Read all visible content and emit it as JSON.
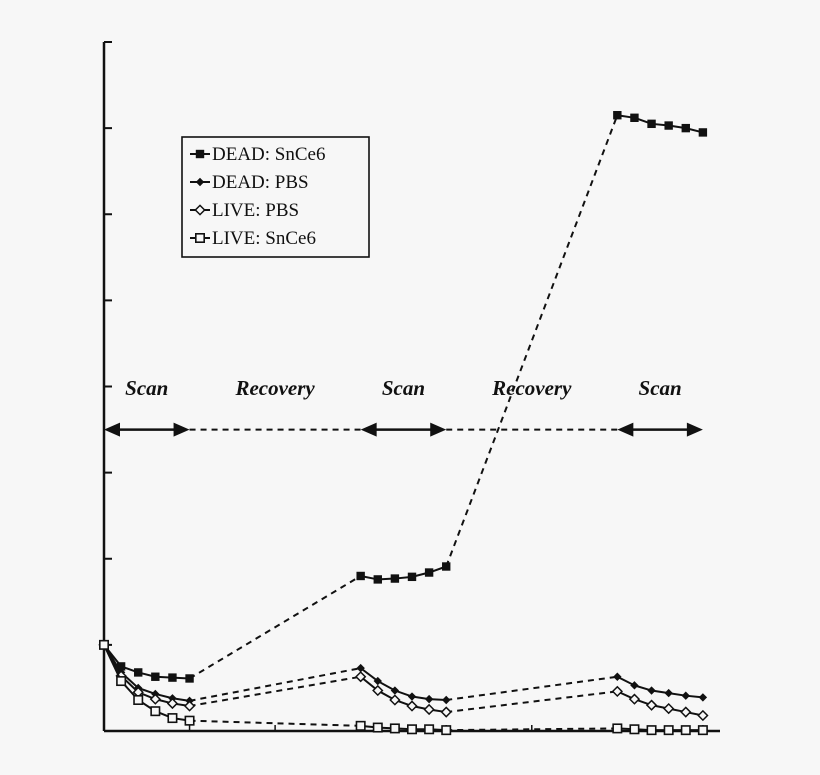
{
  "chart_data": {
    "type": "line",
    "title": "",
    "xlabel": "",
    "ylabel": "",
    "x": [
      0,
      1,
      2,
      3,
      4,
      5,
      15,
      16,
      17,
      18,
      19,
      20,
      30,
      31,
      32,
      33,
      34,
      35
    ],
    "xlim": [
      0,
      36
    ],
    "ylim": [
      0,
      8
    ],
    "y_ticks": [
      0,
      1,
      2,
      3,
      4,
      5,
      6,
      7,
      8
    ],
    "x_ticks": [
      0,
      5,
      10,
      15,
      20,
      25,
      30,
      35
    ],
    "grid": false,
    "legend_position": "top-left",
    "series": [
      {
        "name": "DEAD: SnCe6",
        "marker": "filled-square",
        "values": [
          1.0,
          0.75,
          0.68,
          0.63,
          0.62,
          0.61,
          1.8,
          1.76,
          1.77,
          1.79,
          1.84,
          1.91,
          7.15,
          7.12,
          7.05,
          7.03,
          7.0,
          6.95
        ]
      },
      {
        "name": "DEAD: PBS",
        "marker": "filled-diamond",
        "values": [
          1.0,
          0.68,
          0.5,
          0.43,
          0.38,
          0.35,
          0.73,
          0.58,
          0.47,
          0.4,
          0.37,
          0.36,
          0.63,
          0.53,
          0.47,
          0.44,
          0.41,
          0.39
        ]
      },
      {
        "name": "LIVE: PBS",
        "marker": "open-diamond",
        "values": [
          1.0,
          0.64,
          0.45,
          0.37,
          0.32,
          0.29,
          0.63,
          0.47,
          0.36,
          0.29,
          0.25,
          0.22,
          0.46,
          0.37,
          0.3,
          0.26,
          0.22,
          0.18
        ]
      },
      {
        "name": "LIVE: SnCe6",
        "marker": "open-square",
        "values": [
          1.0,
          0.58,
          0.36,
          0.23,
          0.15,
          0.12,
          0.06,
          0.04,
          0.03,
          0.02,
          0.02,
          0.01,
          0.03,
          0.02,
          0.01,
          0.01,
          0.01,
          0.01
        ]
      }
    ],
    "phases": [
      {
        "label": "Scan",
        "start": 0,
        "end": 5,
        "style": "solid-arrow"
      },
      {
        "label": "Recovery",
        "start": 5,
        "end": 15,
        "style": "dashed"
      },
      {
        "label": "Scan",
        "start": 15,
        "end": 20,
        "style": "solid-arrow"
      },
      {
        "label": "Recovery",
        "start": 20,
        "end": 30,
        "style": "dashed"
      },
      {
        "label": "Scan",
        "start": 30,
        "end": 35,
        "style": "solid-arrow"
      }
    ],
    "phase_line_y": 3.5,
    "phase_label_y": 3.9,
    "colors": {
      "line": "#111111",
      "background": "#f7f7f7",
      "axis": "#111111"
    }
  }
}
